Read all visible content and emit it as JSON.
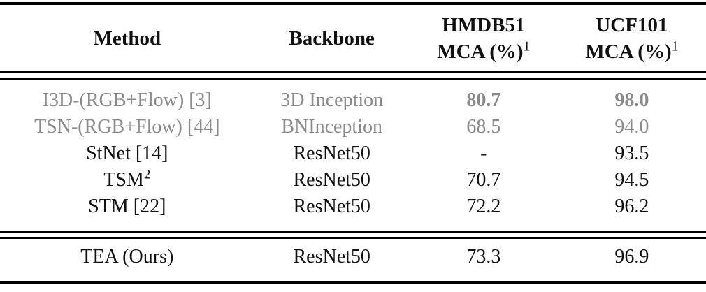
{
  "colors": {
    "background": "#ffffff",
    "text": "#111111",
    "grayed_text": "#8a8a8a",
    "rule": "#000000"
  },
  "table": {
    "header": {
      "method": "Method",
      "backbone": "Backbone",
      "hmdb51": {
        "line1": "HMDB51",
        "line2": "MCA (%)",
        "sup": "1"
      },
      "ucf101": {
        "line1": "UCF101",
        "line2": "MCA (%)",
        "sup": "1"
      }
    },
    "rows": [
      {
        "method": "I3D-(RGB+Flow) [3]",
        "method_sup": "",
        "backbone": "3D Inception",
        "hmdb51": "80.7",
        "ucf101": "98.0"
      },
      {
        "method": "TSN-(RGB+Flow) [44]",
        "method_sup": "",
        "backbone": "BNInception",
        "hmdb51": "68.5",
        "ucf101": "94.0"
      },
      {
        "method": "StNet [14]",
        "method_sup": "",
        "backbone": "ResNet50",
        "hmdb51": "-",
        "ucf101": "93.5"
      },
      {
        "method": "TSM",
        "method_sup": "2",
        "backbone": "ResNet50",
        "hmdb51": "70.7",
        "ucf101": "94.5"
      },
      {
        "method": "STM [22]",
        "method_sup": "",
        "backbone": "ResNet50",
        "hmdb51": "72.2",
        "ucf101": "96.2"
      }
    ],
    "footer_row": {
      "method": "TEA (Ours)",
      "method_sup": "",
      "backbone": "ResNet50",
      "hmdb51": "73.3",
      "ucf101": "96.9"
    }
  }
}
